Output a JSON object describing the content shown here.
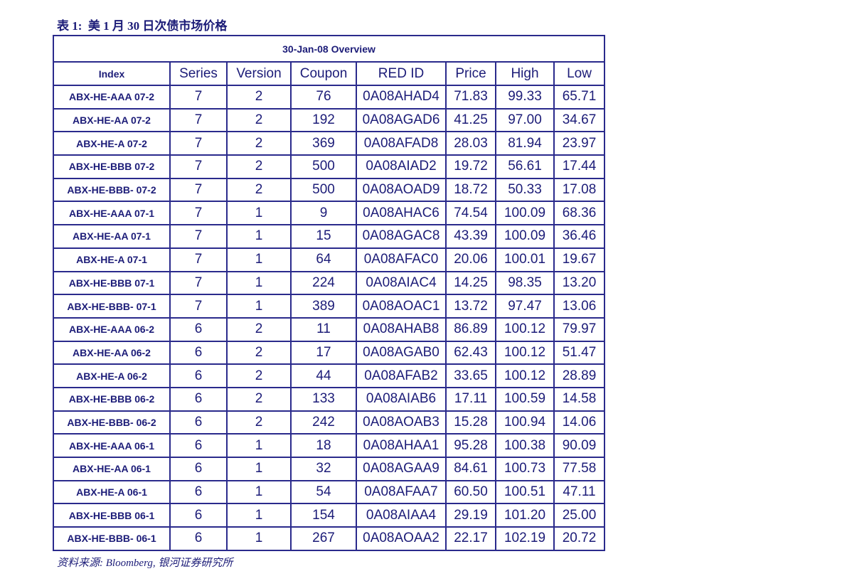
{
  "header": {
    "title": "表 1:  美 1 月 30 日次债市场价格"
  },
  "table": {
    "caption": "30-Jan-08 Overview",
    "columns": [
      "Index",
      "Series",
      "Version",
      "Coupon",
      "RED ID",
      "Price",
      "High",
      "Low"
    ],
    "rows": [
      [
        "ABX-HE-AAA 07-2",
        "7",
        "2",
        "76",
        "0A08AHAD4",
        "71.83",
        "99.33",
        "65.71"
      ],
      [
        "ABX-HE-AA 07-2",
        "7",
        "2",
        "192",
        "0A08AGAD6",
        "41.25",
        "97.00",
        "34.67"
      ],
      [
        "ABX-HE-A 07-2",
        "7",
        "2",
        "369",
        "0A08AFAD8",
        "28.03",
        "81.94",
        "23.97"
      ],
      [
        "ABX-HE-BBB 07-2",
        "7",
        "2",
        "500",
        "0A08AIAD2",
        "19.72",
        "56.61",
        "17.44"
      ],
      [
        "ABX-HE-BBB- 07-2",
        "7",
        "2",
        "500",
        "0A08AOAD9",
        "18.72",
        "50.33",
        "17.08"
      ],
      [
        "ABX-HE-AAA 07-1",
        "7",
        "1",
        "9",
        "0A08AHAC6",
        "74.54",
        "100.09",
        "68.36"
      ],
      [
        "ABX-HE-AA 07-1",
        "7",
        "1",
        "15",
        "0A08AGAC8",
        "43.39",
        "100.09",
        "36.46"
      ],
      [
        "ABX-HE-A 07-1",
        "7",
        "1",
        "64",
        "0A08AFAC0",
        "20.06",
        "100.01",
        "19.67"
      ],
      [
        "ABX-HE-BBB 07-1",
        "7",
        "1",
        "224",
        "0A08AIAC4",
        "14.25",
        "98.35",
        "13.20"
      ],
      [
        "ABX-HE-BBB- 07-1",
        "7",
        "1",
        "389",
        "0A08AOAC1",
        "13.72",
        "97.47",
        "13.06"
      ],
      [
        "ABX-HE-AAA 06-2",
        "6",
        "2",
        "11",
        "0A08AHAB8",
        "86.89",
        "100.12",
        "79.97"
      ],
      [
        "ABX-HE-AA 06-2",
        "6",
        "2",
        "17",
        "0A08AGAB0",
        "62.43",
        "100.12",
        "51.47"
      ],
      [
        "ABX-HE-A 06-2",
        "6",
        "2",
        "44",
        "0A08AFAB2",
        "33.65",
        "100.12",
        "28.89"
      ],
      [
        "ABX-HE-BBB 06-2",
        "6",
        "2",
        "133",
        "0A08AIAB6",
        "17.11",
        "100.59",
        "14.58"
      ],
      [
        "ABX-HE-BBB- 06-2",
        "6",
        "2",
        "242",
        "0A08AOAB3",
        "15.28",
        "100.94",
        "14.06"
      ],
      [
        "ABX-HE-AAA 06-1",
        "6",
        "1",
        "18",
        "0A08AHAA1",
        "95.28",
        "100.38",
        "90.09"
      ],
      [
        "ABX-HE-AA 06-1",
        "6",
        "1",
        "32",
        "0A08AGAA9",
        "84.61",
        "100.73",
        "77.58"
      ],
      [
        "ABX-HE-A 06-1",
        "6",
        "1",
        "54",
        "0A08AFAA7",
        "60.50",
        "100.51",
        "47.11"
      ],
      [
        "ABX-HE-BBB 06-1",
        "6",
        "1",
        "154",
        "0A08AIAA4",
        "29.19",
        "101.20",
        "25.00"
      ],
      [
        "ABX-HE-BBB- 06-1",
        "6",
        "1",
        "267",
        "0A08AOAA2",
        "22.17",
        "102.19",
        "20.72"
      ]
    ]
  },
  "footer": {
    "source": "资料来源: Bloomberg, 银河证券研究所"
  }
}
